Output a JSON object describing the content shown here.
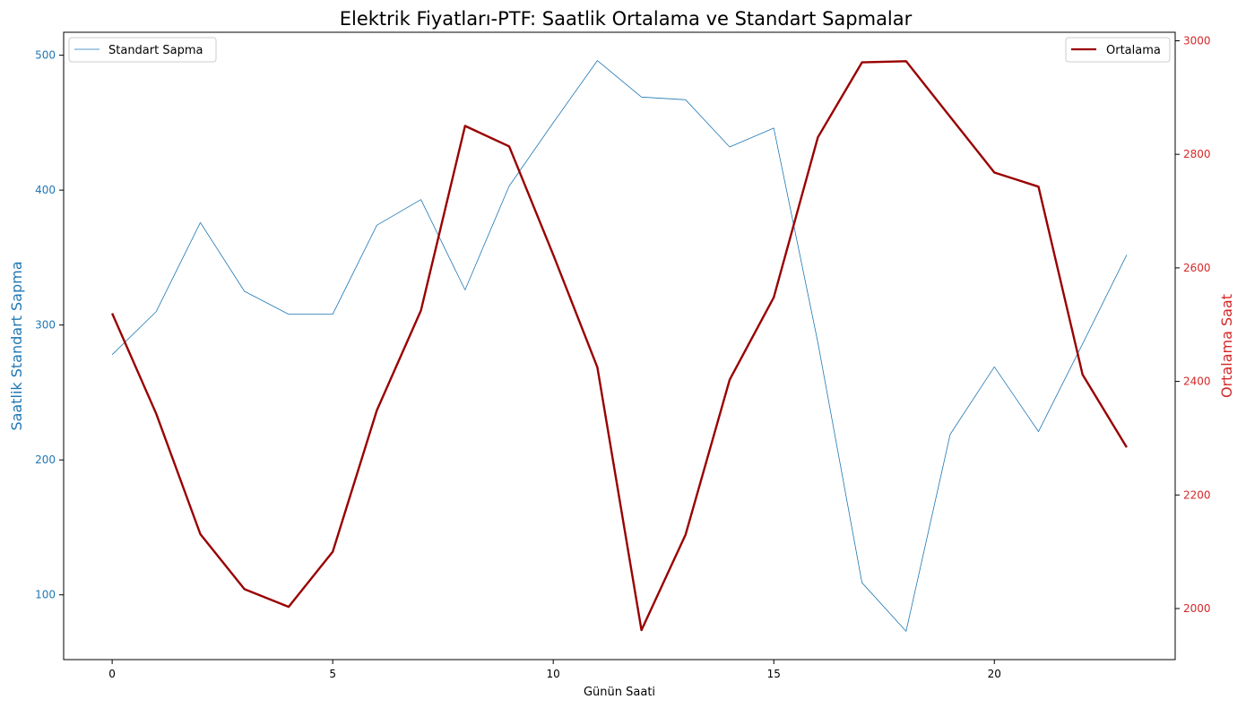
{
  "chart_data": {
    "type": "line",
    "title": "Elektrik Fiyatları-PTF: Saatlik Ortalama ve Standart Sapmalar",
    "xlabel": "Günün Saati",
    "x": [
      0,
      1,
      2,
      3,
      4,
      5,
      6,
      7,
      8,
      9,
      10,
      11,
      12,
      13,
      14,
      15,
      16,
      17,
      18,
      19,
      20,
      21,
      22,
      23
    ],
    "xlim": [
      -1.1,
      24.1
    ],
    "xticks": [
      0,
      5,
      10,
      15,
      20
    ],
    "left_axis": {
      "label": "Saatlik Standart Sapma",
      "color": "#1f77b4",
      "ylim": [
        52,
        517
      ],
      "ticks": [
        100,
        200,
        300,
        400,
        500
      ]
    },
    "right_axis": {
      "label": "Ortalama Saat",
      "color": "#d62728",
      "ylim": [
        1910,
        3015
      ],
      "ticks": [
        2000,
        2200,
        2400,
        2600,
        2800,
        3000
      ]
    },
    "series": [
      {
        "name": "Standart Sapma",
        "axis": "left",
        "color": "#1f77b4",
        "values": [
          278,
          310,
          376,
          325,
          308,
          308,
          374,
          393,
          326,
          403,
          450,
          496,
          469,
          467,
          432,
          446,
          287,
          109,
          73,
          219,
          269,
          221,
          286,
          352
        ]
      },
      {
        "name": "Ortalama",
        "axis": "right",
        "color": "#990000",
        "values": [
          2520,
          2343,
          2131,
          2034,
          2003,
          2100,
          2349,
          2525,
          2850,
          2814,
          2623,
          2425,
          1962,
          2130,
          2403,
          2548,
          2830,
          2962,
          2964,
          2866,
          2768,
          2743,
          2412,
          2284
        ]
      }
    ],
    "legend_left": "top-left",
    "legend_right": "top-right",
    "grid": false
  }
}
